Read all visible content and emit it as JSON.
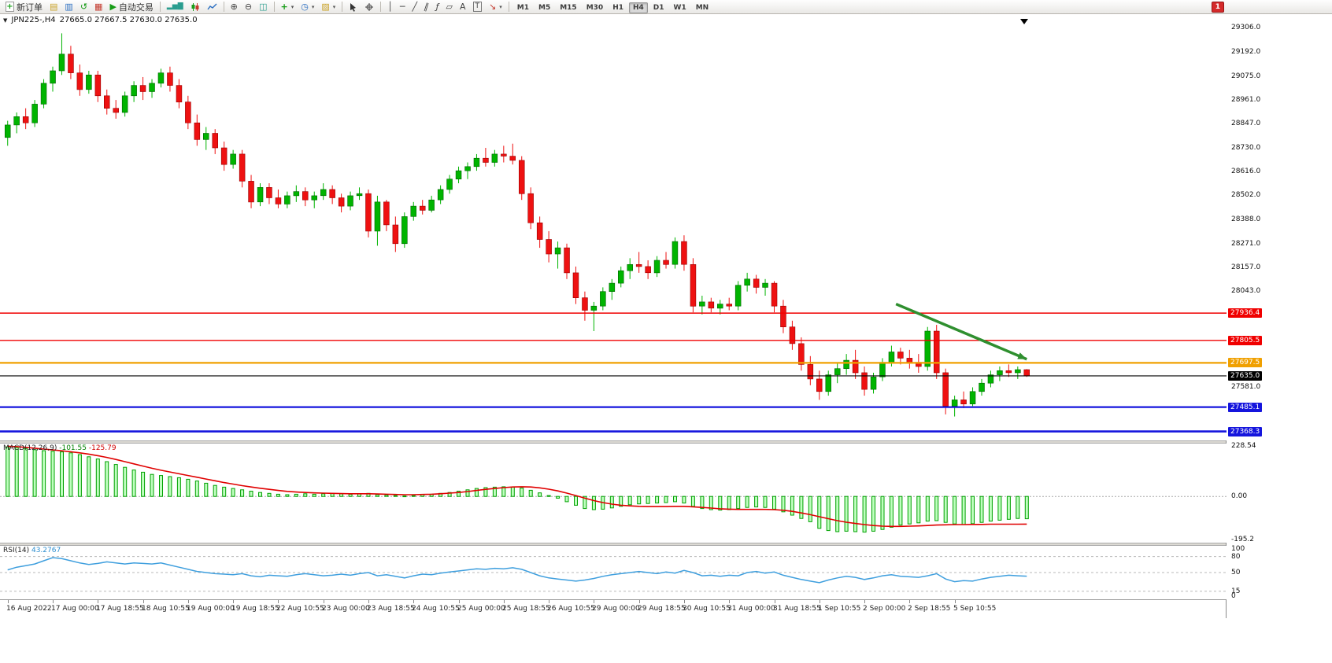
{
  "toolbar": {
    "new_order_label": "新订单",
    "autotrading_label": "自动交易",
    "timeframes": [
      "M1",
      "M5",
      "M15",
      "M30",
      "H1",
      "H4",
      "D1",
      "W1",
      "MN"
    ],
    "active_timeframe": "H4",
    "notification_count": "1",
    "icons": {
      "new_order_plus": "+",
      "market_watch": "▤",
      "data_window": "▥",
      "navigator": "↺",
      "terminal": "▦",
      "autotrading_play": "▶",
      "chart_bars": "▂▅▇",
      "zoom_in": "⊕",
      "zoom_out": "⊖",
      "tile_windows": "◫",
      "indicators": "+",
      "periods": "◷",
      "templates": "▨",
      "cursor": "◤",
      "crosshair": "┼",
      "vline": "│",
      "hline": "─",
      "trendline": "╱",
      "channel": "∥",
      "fibonacci": "ƒ",
      "shapes": "▱",
      "text": "A",
      "text_label": "T",
      "arrows": "↘",
      "caret": "▾",
      "collapse": "▼"
    }
  },
  "chart": {
    "title_symbol": "JPN225-,H4",
    "title_ohlc": "27665.0 27667.5 27630.0 27635.0"
  },
  "chart_data": {
    "type": "candlestick",
    "symbol": "JPN225-",
    "timeframe": "H4",
    "price_range": [
      27325,
      29372
    ],
    "price_ticks": [
      "29306.0",
      "29192.0",
      "29075.0",
      "28961.0",
      "28847.0",
      "28730.0",
      "28616.0",
      "28502.0",
      "28388.0",
      "28271.0",
      "28157.0",
      "28043.0",
      "27581.0"
    ],
    "levels": [
      {
        "value": 27936.4,
        "label": "27936.4",
        "color": "#f00000",
        "width": 1.4
      },
      {
        "value": 27805.5,
        "label": "27805.5",
        "color": "#f00000",
        "width": 1.4
      },
      {
        "value": 27697.5,
        "label": "27697.5",
        "color": "#f0a000",
        "width": 2.2
      },
      {
        "value": 27635.0,
        "label": "27635.0",
        "color": "#000000",
        "width": 1.2
      },
      {
        "value": 27485.1,
        "label": "27485.1",
        "color": "#1515dd",
        "width": 2.2
      },
      {
        "value": 27368.3,
        "label": "27368.3",
        "color": "#1515dd",
        "width": 2.6
      }
    ],
    "annotations": [
      {
        "type": "trend-arrow",
        "from_index": 99,
        "from_price": 27980,
        "to_index": 113.5,
        "to_price": 27715,
        "color": "#2f8f2f",
        "width": 3.5
      }
    ],
    "candles": [
      [
        28780,
        28860,
        28740,
        28840
      ],
      [
        28840,
        28900,
        28800,
        28880
      ],
      [
        28880,
        28920,
        28820,
        28850
      ],
      [
        28850,
        28960,
        28830,
        28940
      ],
      [
        28940,
        29060,
        28920,
        29040
      ],
      [
        29040,
        29120,
        29000,
        29100
      ],
      [
        29100,
        29280,
        29080,
        29180
      ],
      [
        29180,
        29220,
        29060,
        29090
      ],
      [
        29090,
        29130,
        28980,
        29010
      ],
      [
        29010,
        29100,
        28990,
        29080
      ],
      [
        29080,
        29100,
        28950,
        28980
      ],
      [
        28980,
        29010,
        28890,
        28920
      ],
      [
        28920,
        28960,
        28870,
        28900
      ],
      [
        28900,
        29000,
        28880,
        28980
      ],
      [
        28980,
        29050,
        28950,
        29030
      ],
      [
        29030,
        29070,
        28960,
        29000
      ],
      [
        29000,
        29060,
        28970,
        29040
      ],
      [
        29040,
        29110,
        29020,
        29090
      ],
      [
        29090,
        29120,
        29000,
        29030
      ],
      [
        29030,
        29060,
        28920,
        28950
      ],
      [
        28950,
        28980,
        28820,
        28850
      ],
      [
        28850,
        28890,
        28740,
        28770
      ],
      [
        28770,
        28830,
        28720,
        28800
      ],
      [
        28800,
        28820,
        28700,
        28730
      ],
      [
        28730,
        28760,
        28620,
        28650
      ],
      [
        28650,
        28720,
        28630,
        28700
      ],
      [
        28700,
        28720,
        28540,
        28570
      ],
      [
        28570,
        28600,
        28440,
        28470
      ],
      [
        28470,
        28560,
        28450,
        28540
      ],
      [
        28540,
        28560,
        28460,
        28490
      ],
      [
        28490,
        28530,
        28440,
        28460
      ],
      [
        28460,
        28520,
        28440,
        28500
      ],
      [
        28500,
        28550,
        28470,
        28520
      ],
      [
        28520,
        28540,
        28450,
        28480
      ],
      [
        28480,
        28520,
        28440,
        28500
      ],
      [
        28500,
        28560,
        28480,
        28530
      ],
      [
        28530,
        28550,
        28460,
        28490
      ],
      [
        28490,
        28510,
        28420,
        28450
      ],
      [
        28450,
        28520,
        28430,
        28500
      ],
      [
        28500,
        28540,
        28480,
        28510
      ],
      [
        28510,
        28530,
        28300,
        28330
      ],
      [
        28330,
        28500,
        28260,
        28470
      ],
      [
        28470,
        28480,
        28330,
        28360
      ],
      [
        28360,
        28400,
        28230,
        28270
      ],
      [
        28270,
        28420,
        28250,
        28400
      ],
      [
        28400,
        28470,
        28380,
        28450
      ],
      [
        28450,
        28480,
        28410,
        28430
      ],
      [
        28430,
        28500,
        28420,
        28480
      ],
      [
        28480,
        28550,
        28460,
        28530
      ],
      [
        28530,
        28600,
        28510,
        28580
      ],
      [
        28580,
        28640,
        28560,
        28620
      ],
      [
        28620,
        28660,
        28580,
        28640
      ],
      [
        28640,
        28700,
        28620,
        28680
      ],
      [
        28680,
        28730,
        28640,
        28660
      ],
      [
        28660,
        28720,
        28640,
        28700
      ],
      [
        28700,
        28740,
        28660,
        28690
      ],
      [
        28690,
        28750,
        28650,
        28670
      ],
      [
        28670,
        28690,
        28480,
        28510
      ],
      [
        28510,
        28540,
        28340,
        28370
      ],
      [
        28370,
        28400,
        28250,
        28290
      ],
      [
        28290,
        28330,
        28180,
        28220
      ],
      [
        28220,
        28280,
        28150,
        28250
      ],
      [
        28250,
        28270,
        28100,
        28130
      ],
      [
        28130,
        28160,
        27980,
        28010
      ],
      [
        28010,
        28040,
        27900,
        27950
      ],
      [
        27950,
        27990,
        27850,
        27970
      ],
      [
        27970,
        28060,
        27950,
        28040
      ],
      [
        28040,
        28100,
        28000,
        28080
      ],
      [
        28080,
        28160,
        28060,
        28140
      ],
      [
        28140,
        28200,
        28100,
        28170
      ],
      [
        28170,
        28230,
        28130,
        28160
      ],
      [
        28160,
        28190,
        28100,
        28130
      ],
      [
        28130,
        28210,
        28110,
        28190
      ],
      [
        28190,
        28230,
        28150,
        28170
      ],
      [
        28170,
        28300,
        28150,
        28280
      ],
      [
        28280,
        28310,
        28140,
        28170
      ],
      [
        28170,
        28200,
        27940,
        27970
      ],
      [
        27970,
        28020,
        27930,
        27990
      ],
      [
        27990,
        28010,
        27940,
        27960
      ],
      [
        27960,
        28000,
        27930,
        27980
      ],
      [
        27980,
        28010,
        27950,
        27970
      ],
      [
        27970,
        28090,
        27950,
        28070
      ],
      [
        28070,
        28130,
        28040,
        28100
      ],
      [
        28100,
        28120,
        28030,
        28060
      ],
      [
        28060,
        28100,
        28020,
        28080
      ],
      [
        28080,
        28090,
        27940,
        27970
      ],
      [
        27970,
        28000,
        27840,
        27870
      ],
      [
        27870,
        27900,
        27760,
        27790
      ],
      [
        27790,
        27820,
        27660,
        27690
      ],
      [
        27690,
        27730,
        27590,
        27620
      ],
      [
        27620,
        27660,
        27520,
        27560
      ],
      [
        27560,
        27660,
        27540,
        27640
      ],
      [
        27640,
        27700,
        27600,
        27670
      ],
      [
        27670,
        27740,
        27640,
        27710
      ],
      [
        27710,
        27760,
        27620,
        27650
      ],
      [
        27650,
        27680,
        27540,
        27570
      ],
      [
        27570,
        27650,
        27550,
        27630
      ],
      [
        27630,
        27720,
        27610,
        27700
      ],
      [
        27700,
        27780,
        27680,
        27750
      ],
      [
        27750,
        27770,
        27690,
        27720
      ],
      [
        27720,
        27760,
        27670,
        27700
      ],
      [
        27700,
        27740,
        27650,
        27680
      ],
      [
        27680,
        27870,
        27660,
        27850
      ],
      [
        27850,
        27880,
        27620,
        27650
      ],
      [
        27650,
        27670,
        27450,
        27490
      ],
      [
        27490,
        27540,
        27440,
        27520
      ],
      [
        27520,
        27560,
        27480,
        27500
      ],
      [
        27500,
        27580,
        27490,
        27560
      ],
      [
        27560,
        27620,
        27540,
        27600
      ],
      [
        27600,
        27660,
        27580,
        27640
      ],
      [
        27640,
        27680,
        27610,
        27660
      ],
      [
        27660,
        27690,
        27630,
        27650
      ],
      [
        27650,
        27680,
        27620,
        27665
      ],
      [
        27665,
        27667.5,
        27630,
        27635
      ]
    ],
    "macd": {
      "label": "MACD(12,26,9)",
      "value_main": "-101.55",
      "value_signal": "-125.79",
      "range": [
        240,
        -210
      ],
      "axis_labels": [
        "228.54",
        "0.00",
        "-195.2"
      ],
      "histogram": [
        225,
        222,
        218,
        212,
        208,
        205,
        202,
        198,
        190,
        180,
        170,
        158,
        145,
        132,
        120,
        110,
        100,
        95,
        90,
        85,
        78,
        70,
        60,
        50,
        42,
        36,
        30,
        24,
        18,
        14,
        10,
        8,
        10,
        12,
        10,
        12,
        14,
        12,
        10,
        12,
        14,
        8,
        6,
        4,
        2,
        4,
        8,
        10,
        14,
        18,
        24,
        30,
        36,
        40,
        42,
        44,
        42,
        38,
        28,
        16,
        4,
        -8,
        -24,
        -40,
        -55,
        -60,
        -58,
        -52,
        -45,
        -38,
        -34,
        -32,
        -30,
        -28,
        -24,
        -30,
        -45,
        -55,
        -60,
        -62,
        -60,
        -55,
        -50,
        -48,
        -50,
        -58,
        -70,
        -85,
        -100,
        -115,
        -145,
        -155,
        -160,
        -158,
        -160,
        -162,
        -158,
        -150,
        -140,
        -130,
        -125,
        -120,
        -112,
        -110,
        -118,
        -125,
        -128,
        -124,
        -118,
        -112,
        -108,
        -104,
        -100,
        -101.55
      ],
      "signal": [
        228,
        226,
        223,
        219,
        215,
        211,
        207,
        203,
        198,
        192,
        185,
        177,
        168,
        158,
        148,
        138,
        128,
        119,
        111,
        103,
        95,
        87,
        79,
        71,
        63,
        56,
        49,
        43,
        37,
        32,
        27,
        23,
        20,
        18,
        16,
        15,
        14,
        13,
        12,
        12,
        12,
        11,
        10,
        9,
        8,
        8,
        9,
        10,
        12,
        15,
        18,
        22,
        27,
        32,
        36,
        40,
        43,
        44,
        43,
        39,
        33,
        25,
        15,
        4,
        -8,
        -19,
        -28,
        -35,
        -40,
        -43,
        -45,
        -46,
        -46,
        -46,
        -45,
        -45,
        -47,
        -50,
        -53,
        -56,
        -58,
        -59,
        -59,
        -59,
        -59,
        -60,
        -63,
        -68,
        -75,
        -83,
        -92,
        -101,
        -110,
        -117,
        -123,
        -128,
        -132,
        -135,
        -136,
        -136,
        -135,
        -134,
        -132,
        -130,
        -129,
        -128,
        -128,
        -127,
        -127,
        -126,
        -126,
        -126,
        -126,
        -125.79
      ]
    },
    "rsi": {
      "label": "RSI(14)",
      "value": "43.2767",
      "range": [
        0,
        100
      ],
      "levels": [
        80,
        50,
        15
      ],
      "axis_labels": [
        "100",
        "80",
        "50",
        "15",
        "0"
      ],
      "values": [
        55,
        60,
        63,
        66,
        72,
        78,
        76,
        72,
        68,
        65,
        67,
        70,
        68,
        66,
        68,
        67,
        66,
        68,
        64,
        60,
        56,
        52,
        50,
        48,
        47,
        46,
        48,
        44,
        42,
        45,
        44,
        43,
        46,
        48,
        46,
        44,
        45,
        47,
        45,
        48,
        50,
        44,
        46,
        43,
        40,
        44,
        47,
        46,
        49,
        51,
        53,
        55,
        57,
        56,
        58,
        57,
        59,
        56,
        50,
        44,
        40,
        38,
        36,
        34,
        36,
        39,
        43,
        46,
        48,
        50,
        52,
        50,
        48,
        51,
        49,
        54,
        50,
        44,
        45,
        43,
        45,
        44,
        50,
        52,
        49,
        51,
        45,
        41,
        37,
        34,
        31,
        36,
        40,
        43,
        41,
        37,
        40,
        44,
        46,
        43,
        42,
        41,
        44,
        48,
        38,
        33,
        35,
        34,
        38,
        41,
        43,
        45,
        44,
        43.28
      ]
    },
    "time_labels": [
      "16 Aug 2022",
      "17 Aug 00:00",
      "17 Aug 18:55",
      "18 Aug 10:55",
      "19 Aug 00:00",
      "19 Aug 18:55",
      "22 Aug 10:55",
      "23 Aug 00:00",
      "23 Aug 18:55",
      "24 Aug 10:55",
      "25 Aug 00:00",
      "25 Aug 18:55",
      "26 Aug 10:55",
      "29 Aug 00:00",
      "29 Aug 18:55",
      "30 Aug 10:55",
      "31 Aug 00:00",
      "31 Aug 18:55",
      "1 Sep 10:55",
      "2 Sep 00:00",
      "2 Sep 18:55",
      "5 Sep 10:55"
    ]
  }
}
